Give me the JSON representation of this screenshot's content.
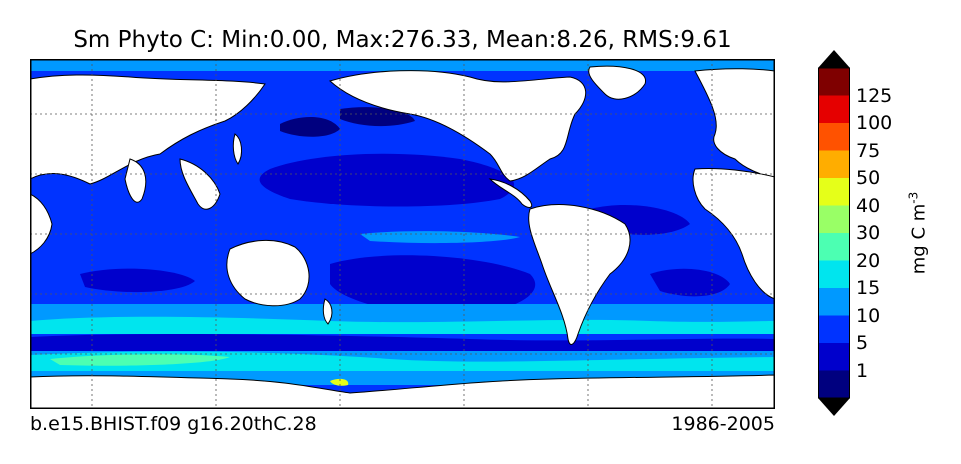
{
  "title": "Sm Phyto C: Min:0.00, Max:276.33, Mean:8.26, RMS:9.61",
  "footer": {
    "left": "b.e15.BHIST.f09 g16.20thC.28",
    "right": "1986-2005"
  },
  "colorbar": {
    "unit_label": "mg C m",
    "unit_exponent": "-3",
    "tick_labels": [
      "1",
      "5",
      "10",
      "15",
      "20",
      "30",
      "40",
      "50",
      "75",
      "100",
      "125"
    ],
    "colors": [
      "#00007f",
      "#0000cc",
      "#0033ff",
      "#0099ff",
      "#00e5ee",
      "#4cffb2",
      "#99ff66",
      "#e5ff19",
      "#ffad00",
      "#ff5200",
      "#e50000",
      "#7f0000"
    ]
  },
  "map": {
    "ocean_low": "#0000cc",
    "ocean_mid": "#0033ff",
    "ocean_band": "#0099ff",
    "ocean_high": "#00e5ee",
    "land": "#ffffff",
    "gridlines": "dotted"
  }
}
